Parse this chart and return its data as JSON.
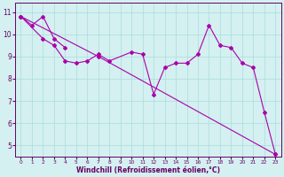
{
  "x": [
    0,
    1,
    2,
    3,
    4,
    5,
    6,
    7,
    8,
    9,
    10,
    11,
    12,
    13,
    14,
    15,
    16,
    17,
    18,
    19,
    20,
    21,
    22,
    23
  ],
  "line1": [
    10.8,
    10.4,
    10.8,
    9.8,
    9.4,
    null,
    null,
    null,
    null,
    null,
    null,
    null,
    null,
    null,
    null,
    null,
    null,
    null,
    null,
    null,
    null,
    null,
    null,
    null
  ],
  "line2": [
    10.8,
    null,
    9.8,
    9.5,
    8.8,
    8.7,
    8.8,
    9.1,
    8.8,
    null,
    9.2,
    9.1,
    7.3,
    8.5,
    8.7,
    8.7,
    9.1,
    10.4,
    9.5,
    9.4,
    8.7,
    8.5,
    6.5,
    4.6
  ],
  "line3": [
    10.8,
    null,
    null,
    null,
    null,
    null,
    null,
    9.0,
    null,
    null,
    null,
    null,
    null,
    null,
    null,
    null,
    null,
    null,
    null,
    null,
    null,
    null,
    null,
    4.6
  ],
  "bg_color": "#d4f0f0",
  "line_color": "#aa00aa",
  "grid_color": "#aadddd",
  "axis_label_color": "#660066",
  "tick_color": "#660066",
  "xlabel": "Windchill (Refroidissement éolien,°C)",
  "xlim": [
    -0.5,
    23.5
  ],
  "ylim": [
    4.5,
    11.4
  ],
  "yticks": [
    5,
    6,
    7,
    8,
    9,
    10,
    11
  ],
  "xticks": [
    0,
    1,
    2,
    3,
    4,
    5,
    6,
    7,
    8,
    9,
    10,
    11,
    12,
    13,
    14,
    15,
    16,
    17,
    18,
    19,
    20,
    21,
    22,
    23
  ]
}
